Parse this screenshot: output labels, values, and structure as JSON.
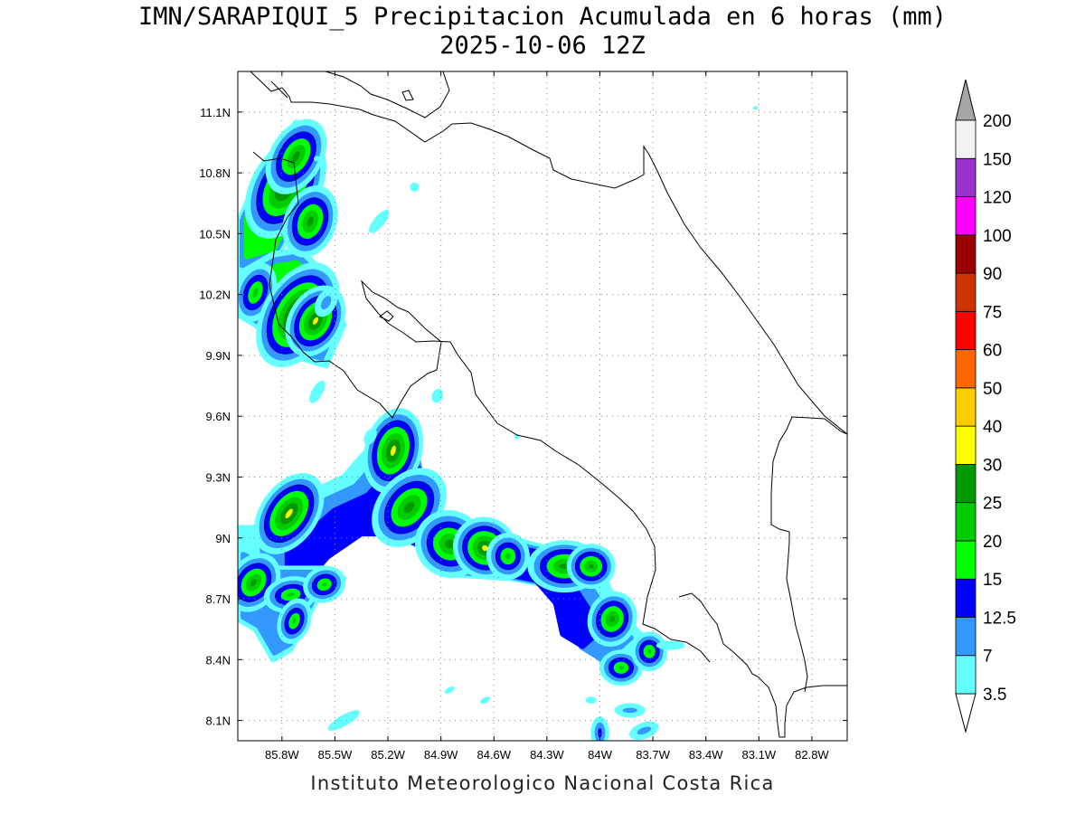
{
  "title": "IMN/SARAPIQUI_5 Precipitacion Acumulada en 6 horas (mm)",
  "subtitle": "2025-10-06 12Z",
  "footer": "Instituto Meteorologico Nacional Costa Rica",
  "map": {
    "lon_range": [
      -86.05,
      -82.6
    ],
    "lat_range": [
      8.0,
      11.3
    ],
    "lon_ticks": [
      {
        "value": -85.8,
        "label": "85.8W"
      },
      {
        "value": -85.5,
        "label": "85.5W"
      },
      {
        "value": -85.2,
        "label": "85.2W"
      },
      {
        "value": -84.9,
        "label": "84.9W"
      },
      {
        "value": -84.6,
        "label": "84.6W"
      },
      {
        "value": -84.3,
        "label": "84.3W"
      },
      {
        "value": -84.0,
        "label": "84W"
      },
      {
        "value": -83.7,
        "label": "83.7W"
      },
      {
        "value": -83.4,
        "label": "83.4W"
      },
      {
        "value": -83.1,
        "label": "83.1W"
      },
      {
        "value": -82.8,
        "label": "82.8W"
      }
    ],
    "lat_ticks": [
      {
        "value": 11.1,
        "label": "11.1N"
      },
      {
        "value": 10.8,
        "label": "10.8N"
      },
      {
        "value": 10.5,
        "label": "10.5N"
      },
      {
        "value": 10.2,
        "label": "10.2N"
      },
      {
        "value": 9.9,
        "label": "9.9N"
      },
      {
        "value": 9.6,
        "label": "9.6N"
      },
      {
        "value": 9.3,
        "label": "9.3N"
      },
      {
        "value": 9.0,
        "label": "9N"
      },
      {
        "value": 8.7,
        "label": "8.7N"
      },
      {
        "value": 8.4,
        "label": "8.4N"
      },
      {
        "value": 8.1,
        "label": "8.1N"
      }
    ],
    "grid": "dotted",
    "border_color": "#000000"
  },
  "colorbar": {
    "levels": [
      "3.5",
      "7",
      "12.5",
      "15",
      "20",
      "25",
      "30",
      "40",
      "50",
      "60",
      "75",
      "90",
      "100",
      "120",
      "150",
      "200"
    ],
    "colors": [
      "#66ffff",
      "#3399ff",
      "#0000ff",
      "#00ff00",
      "#00cc00",
      "#009900",
      "#ffff00",
      "#ffcc00",
      "#ff6600",
      "#ff0000",
      "#cc3300",
      "#990000",
      "#ff00ff",
      "#9933cc",
      "#f2f2f2"
    ],
    "top_arrow_color": "#a6a6a6",
    "bottom_arrow_color": "#ffffff"
  },
  "precip_cells": [
    {
      "lon": -85.78,
      "lat": 10.73,
      "rx": 20,
      "ry": 44,
      "rot": 30,
      "level": 6
    },
    {
      "lon": -85.72,
      "lat": 10.88,
      "rx": 14,
      "ry": 30,
      "rot": 30,
      "level": 5
    },
    {
      "lon": -85.64,
      "lat": 10.56,
      "rx": 14,
      "ry": 26,
      "rot": 20,
      "level": 5
    },
    {
      "lon": -85.95,
      "lat": 10.21,
      "rx": 10,
      "ry": 22,
      "rot": 20,
      "level": 4
    },
    {
      "lon": -85.71,
      "lat": 10.1,
      "rx": 18,
      "ry": 42,
      "rot": 30,
      "level": 7
    },
    {
      "lon": -85.61,
      "lat": 10.07,
      "rx": 12,
      "ry": 24,
      "rot": 30,
      "level": 6
    },
    {
      "lon": -85.17,
      "lat": 9.43,
      "rx": 14,
      "ry": 30,
      "rot": 15,
      "level": 6
    },
    {
      "lon": -85.08,
      "lat": 9.15,
      "rx": 20,
      "ry": 34,
      "rot": 40,
      "level": 5
    },
    {
      "lon": -85.76,
      "lat": 9.12,
      "rx": 14,
      "ry": 32,
      "rot": 35,
      "level": 6
    },
    {
      "lon": -84.85,
      "lat": 8.97,
      "rx": 24,
      "ry": 22,
      "rot": 30,
      "level": 5
    },
    {
      "lon": -84.65,
      "lat": 8.95,
      "rx": 18,
      "ry": 16,
      "rot": 30,
      "level": 6
    },
    {
      "lon": -84.52,
      "lat": 8.91,
      "rx": 12,
      "ry": 14,
      "rot": 0,
      "level": 4
    },
    {
      "lon": -84.2,
      "lat": 8.86,
      "rx": 26,
      "ry": 14,
      "rot": 0,
      "level": 5
    },
    {
      "lon": -84.05,
      "lat": 8.86,
      "rx": 12,
      "ry": 10,
      "rot": 0,
      "level": 5
    },
    {
      "lon": -83.93,
      "lat": 8.6,
      "rx": 12,
      "ry": 16,
      "rot": 20,
      "level": 5
    },
    {
      "lon": -85.96,
      "lat": 8.78,
      "rx": 12,
      "ry": 20,
      "rot": 35,
      "level": 5
    },
    {
      "lon": -85.75,
      "lat": 8.72,
      "rx": 18,
      "ry": 8,
      "rot": -10,
      "level": 4
    },
    {
      "lon": -85.56,
      "lat": 8.77,
      "rx": 12,
      "ry": 8,
      "rot": -20,
      "level": 4
    },
    {
      "lon": -85.73,
      "lat": 8.59,
      "rx": 6,
      "ry": 14,
      "rot": 20,
      "level": 4
    },
    {
      "lon": -83.88,
      "lat": 8.36,
      "rx": 12,
      "ry": 8,
      "rot": 0,
      "level": 4
    },
    {
      "lon": -83.72,
      "lat": 8.44,
      "rx": 8,
      "ry": 10,
      "rot": 0,
      "level": 4
    },
    {
      "lon": -84.47,
      "lat": 9.5,
      "rx": 3,
      "ry": 3,
      "rot": 0,
      "level": 0
    },
    {
      "lon": -85.3,
      "lat": 9.5,
      "rx": 6,
      "ry": 10,
      "rot": 30,
      "level": 0
    },
    {
      "lon": -85.6,
      "lat": 9.72,
      "rx": 6,
      "ry": 14,
      "rot": 30,
      "level": 0
    },
    {
      "lon": -84.92,
      "lat": 9.7,
      "rx": 6,
      "ry": 8,
      "rot": 20,
      "level": 0
    },
    {
      "lon": -85.6,
      "lat": 10.87,
      "rx": 4,
      "ry": 3,
      "rot": 0,
      "level": 0
    },
    {
      "lon": -85.05,
      "lat": 10.73,
      "rx": 5,
      "ry": 5,
      "rot": 0,
      "level": 0
    },
    {
      "lon": -85.25,
      "lat": 10.56,
      "rx": 6,
      "ry": 16,
      "rot": 40,
      "level": 0
    },
    {
      "lon": -85.55,
      "lat": 10.16,
      "rx": 8,
      "ry": 14,
      "rot": 30,
      "level": 1
    },
    {
      "lon": -83.12,
      "lat": 11.12,
      "rx": 3,
      "ry": 2,
      "rot": 0,
      "level": 0
    },
    {
      "lon": -85.45,
      "lat": 8.1,
      "rx": 20,
      "ry": 6,
      "rot": -30,
      "level": 0
    },
    {
      "lon": -84.85,
      "lat": 8.25,
      "rx": 6,
      "ry": 3,
      "rot": -30,
      "level": 0
    },
    {
      "lon": -84.65,
      "lat": 8.2,
      "rx": 6,
      "ry": 3,
      "rot": -30,
      "level": 0
    },
    {
      "lon": -84.05,
      "lat": 8.2,
      "rx": 6,
      "ry": 4,
      "rot": 0,
      "level": 0
    },
    {
      "lon": -83.83,
      "lat": 8.15,
      "rx": 14,
      "ry": 5,
      "rot": 0,
      "level": 1
    },
    {
      "lon": -83.75,
      "lat": 8.05,
      "rx": 14,
      "ry": 6,
      "rot": -20,
      "level": 1
    },
    {
      "lon": -84.0,
      "lat": 8.04,
      "rx": 4,
      "ry": 12,
      "rot": 0,
      "level": 2
    },
    {
      "lon": -83.6,
      "lat": 8.47,
      "rx": 16,
      "ry": 5,
      "rot": 0,
      "level": 0
    }
  ],
  "precip_bands": [
    {
      "points": [
        [
          -86.05,
          10.55
        ],
        [
          -85.9,
          10.85
        ],
        [
          -85.72,
          11.05
        ],
        [
          -85.6,
          10.95
        ],
        [
          -85.7,
          10.6
        ],
        [
          -85.85,
          10.35
        ],
        [
          -86.05,
          10.3
        ]
      ],
      "levels": [
        0,
        1,
        3
      ]
    },
    {
      "points": [
        [
          -86.05,
          10.3
        ],
        [
          -85.85,
          10.4
        ],
        [
          -85.7,
          10.42
        ],
        [
          -85.55,
          10.3
        ],
        [
          -85.45,
          10.05
        ],
        [
          -85.55,
          9.85
        ],
        [
          -85.75,
          9.9
        ],
        [
          -85.95,
          10.05
        ],
        [
          -86.05,
          10.1
        ]
      ],
      "levels": [
        0,
        1,
        3
      ]
    },
    {
      "points": [
        [
          -86.05,
          9.05
        ],
        [
          -85.9,
          9.05
        ],
        [
          -85.7,
          9.2
        ],
        [
          -85.45,
          9.3
        ],
        [
          -85.3,
          9.45
        ],
        [
          -85.2,
          9.6
        ],
        [
          -85.05,
          9.45
        ],
        [
          -85.0,
          9.2
        ],
        [
          -84.95,
          9.02
        ],
        [
          -84.8,
          9.06
        ],
        [
          -84.6,
          9.02
        ],
        [
          -84.3,
          8.95
        ],
        [
          -84.0,
          8.9
        ],
        [
          -83.95,
          8.75
        ],
        [
          -83.8,
          8.55
        ],
        [
          -83.68,
          8.45
        ],
        [
          -83.85,
          8.32
        ],
        [
          -84.0,
          8.4
        ],
        [
          -84.05,
          8.6
        ],
        [
          -84.2,
          8.75
        ],
        [
          -84.5,
          8.8
        ],
        [
          -84.85,
          8.82
        ],
        [
          -85.0,
          8.95
        ],
        [
          -85.25,
          9.05
        ],
        [
          -85.5,
          9.05
        ],
        [
          -85.75,
          8.9
        ],
        [
          -85.95,
          8.7
        ],
        [
          -86.05,
          8.65
        ]
      ],
      "levels": [
        0,
        1,
        2
      ]
    },
    {
      "points": [
        [
          -86.05,
          8.95
        ],
        [
          -85.85,
          8.85
        ],
        [
          -85.55,
          8.85
        ],
        [
          -85.45,
          8.8
        ],
        [
          -85.6,
          8.7
        ],
        [
          -85.75,
          8.45
        ],
        [
          -85.85,
          8.4
        ],
        [
          -85.95,
          8.55
        ],
        [
          -86.05,
          8.6
        ]
      ],
      "levels": [
        0,
        1
      ]
    }
  ]
}
